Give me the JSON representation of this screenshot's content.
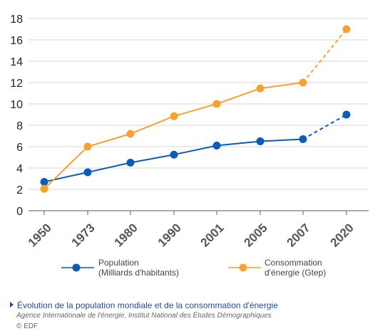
{
  "chart_data": {
    "type": "line",
    "categories": [
      "1950",
      "1973",
      "1980",
      "1990",
      "2001",
      "2005",
      "2007",
      "2020"
    ],
    "ylim": [
      0,
      18
    ],
    "yticks": [
      "0",
      "2",
      "4",
      "6",
      "8",
      "10",
      "12",
      "14",
      "16",
      "18"
    ],
    "grid": true,
    "legend_position": "bottom",
    "series": [
      {
        "name": "Population\n(Milliards d'habitants)",
        "color": "#0a5cb8",
        "values": [
          2.7,
          3.6,
          4.5,
          5.25,
          6.1,
          6.5,
          6.7,
          9.0
        ],
        "projected_from_index": 6
      },
      {
        "name": "Consommation\nd'énergie (Gtep)",
        "color": "#f7a12e",
        "values": [
          2.05,
          6.0,
          7.2,
          8.85,
          10.0,
          11.45,
          12.0,
          17.0
        ],
        "projected_from_index": 6
      }
    ]
  },
  "caption": {
    "title": "Évolution de la population mondiale et de la consommation d'énergie",
    "source": "Agence Internationale de l'énergie, Institut National des Études Démographiques",
    "credit": "© EDF"
  }
}
